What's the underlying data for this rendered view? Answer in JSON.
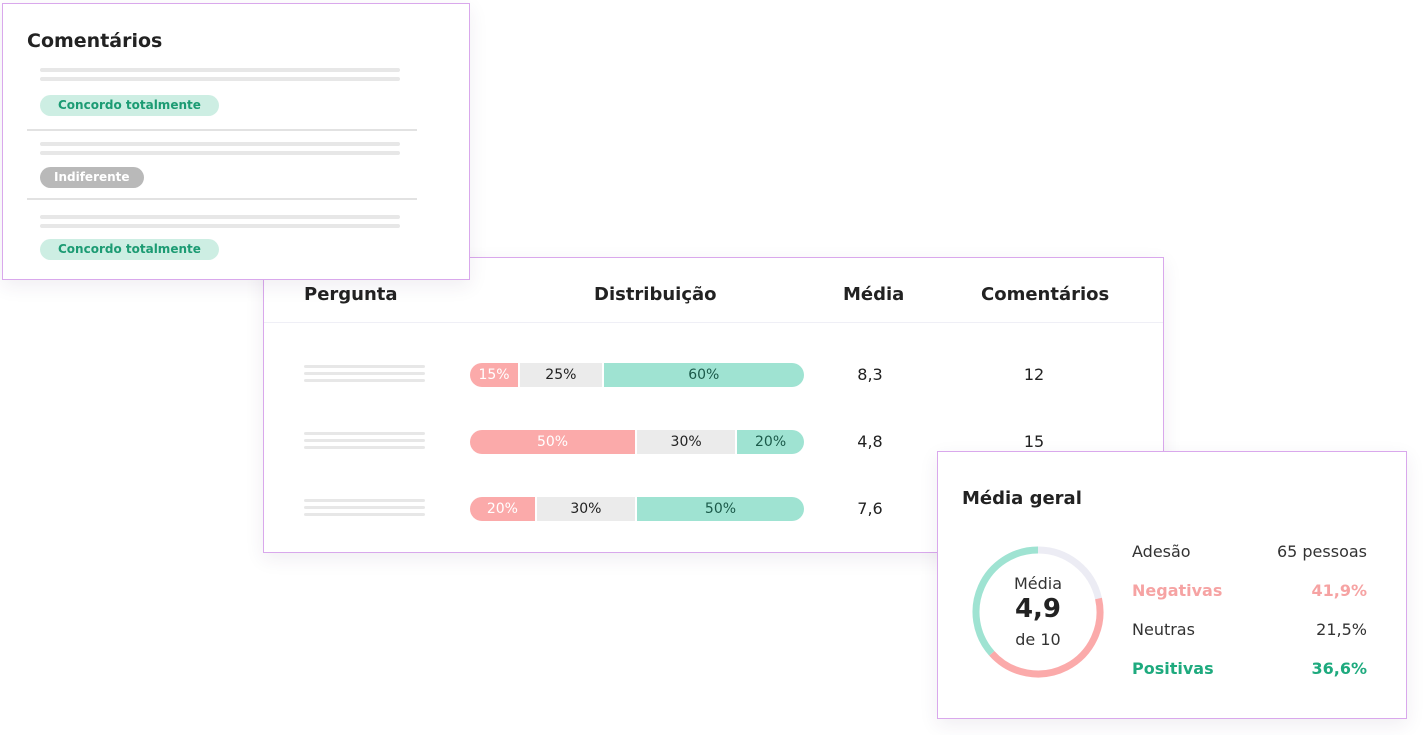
{
  "colors": {
    "border": "#d9a8ec",
    "negative": "#fbaaaa",
    "neutral": "#ebebeb",
    "positive": "#9fe3d2",
    "negative_text": "#f6a3a3",
    "positive_text": "#1eaa7e"
  },
  "comments": {
    "title": "Comentários",
    "items": [
      {
        "tag": "Concordo totalmente",
        "tone": "positive"
      },
      {
        "tag": "Indiferente",
        "tone": "neutral"
      },
      {
        "tag": "Concordo totalmente",
        "tone": "positive"
      }
    ]
  },
  "table": {
    "headers": {
      "question": "Pergunta",
      "distribution": "Distribuição",
      "average": "Média",
      "comments": "Comentários"
    },
    "rows": [
      {
        "neg": 15,
        "neu": 25,
        "pos": 60,
        "neg_label": "15%",
        "neu_label": "25%",
        "pos_label": "60%",
        "average": "8,3",
        "comments": "12"
      },
      {
        "neg": 50,
        "neu": 30,
        "pos": 20,
        "neg_label": "50%",
        "neu_label": "30%",
        "pos_label": "20%",
        "average": "4,8",
        "comments": "15"
      },
      {
        "neg": 20,
        "neu": 30,
        "pos": 50,
        "neg_label": "20%",
        "neu_label": "30%",
        "pos_label": "50%",
        "average": "7,6",
        "comments": ""
      }
    ]
  },
  "summary": {
    "title": "Média geral",
    "donut": {
      "label": "Média",
      "value": "4,9",
      "sub": "de 10",
      "negative_pct": 41.9,
      "neutral_pct": 21.5,
      "positive_pct": 36.6
    },
    "stats": [
      {
        "label": "Adesão",
        "value": "65 pessoas",
        "tone": "plain"
      },
      {
        "label": "Negativas",
        "value": "41,9%",
        "tone": "neg"
      },
      {
        "label": "Neutras",
        "value": "21,5%",
        "tone": "plain"
      },
      {
        "label": "Positivas",
        "value": "36,6%",
        "tone": "pos"
      }
    ]
  }
}
